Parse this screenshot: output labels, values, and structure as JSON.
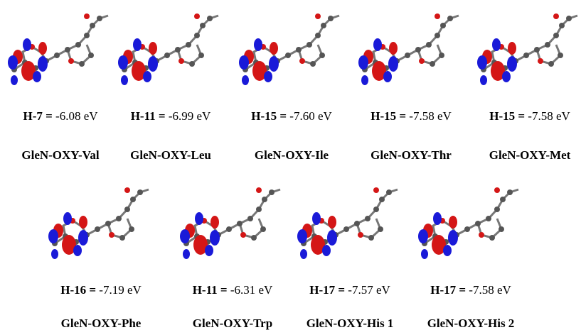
{
  "panels": [
    {
      "orbital": "H-7 =",
      "energy": "-6.08 eV",
      "name": "GleN-OXY-Val"
    },
    {
      "orbital": "H-11 =",
      "energy": "-6.99 eV",
      "name": "GleN-OXY-Leu"
    },
    {
      "orbital": "H-15 =",
      "energy": "-7.60 eV",
      "name": "GleN-OXY-Ile"
    },
    {
      "orbital": "H-15 =",
      "energy": "-7.58 eV",
      "name": "GleN-OXY-Thr"
    },
    {
      "orbital": "H-15 =",
      "energy": "-7.58 eV",
      "name": "GleN-OXY-Met"
    },
    {
      "orbital": "H-16 =",
      "energy": "-7.19 eV",
      "name": "GleN-OXY-Phe"
    },
    {
      "orbital": "H-11 =",
      "energy": "-6.31 eV",
      "name": "GleN-OXY-Trp"
    },
    {
      "orbital": "H-17 =",
      "energy": "-7.57 eV",
      "name": "GleN-OXY-His 1"
    },
    {
      "orbital": "H-17 =",
      "energy": "-7.58 eV",
      "name": "GleN-OXY-His 2"
    }
  ]
}
